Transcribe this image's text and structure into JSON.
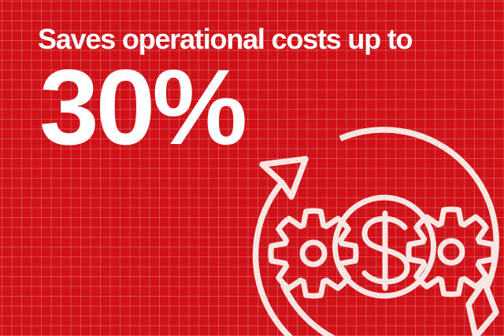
{
  "banner": {
    "headline": "Saves operational costs up to",
    "statistic": "30%"
  },
  "colors": {
    "background_red": "#d01118",
    "grid_line": "rgba(255,255,255,0.22)",
    "illustration_stroke": "#f8e6e3",
    "text_white": "#ffffff"
  },
  "illustration": {
    "name": "cost-savings-gears-dollar-growth-arrow",
    "parts": [
      "circular-growth-arrow-top-arc",
      "circular-growth-arrow-left-arc",
      "circular-growth-arrow-bottom-arc",
      "up-right-arrowhead",
      "down-left-arrowhead",
      "left-gear",
      "right-gear",
      "dollar-coin-circle",
      "dollar-sign"
    ]
  }
}
